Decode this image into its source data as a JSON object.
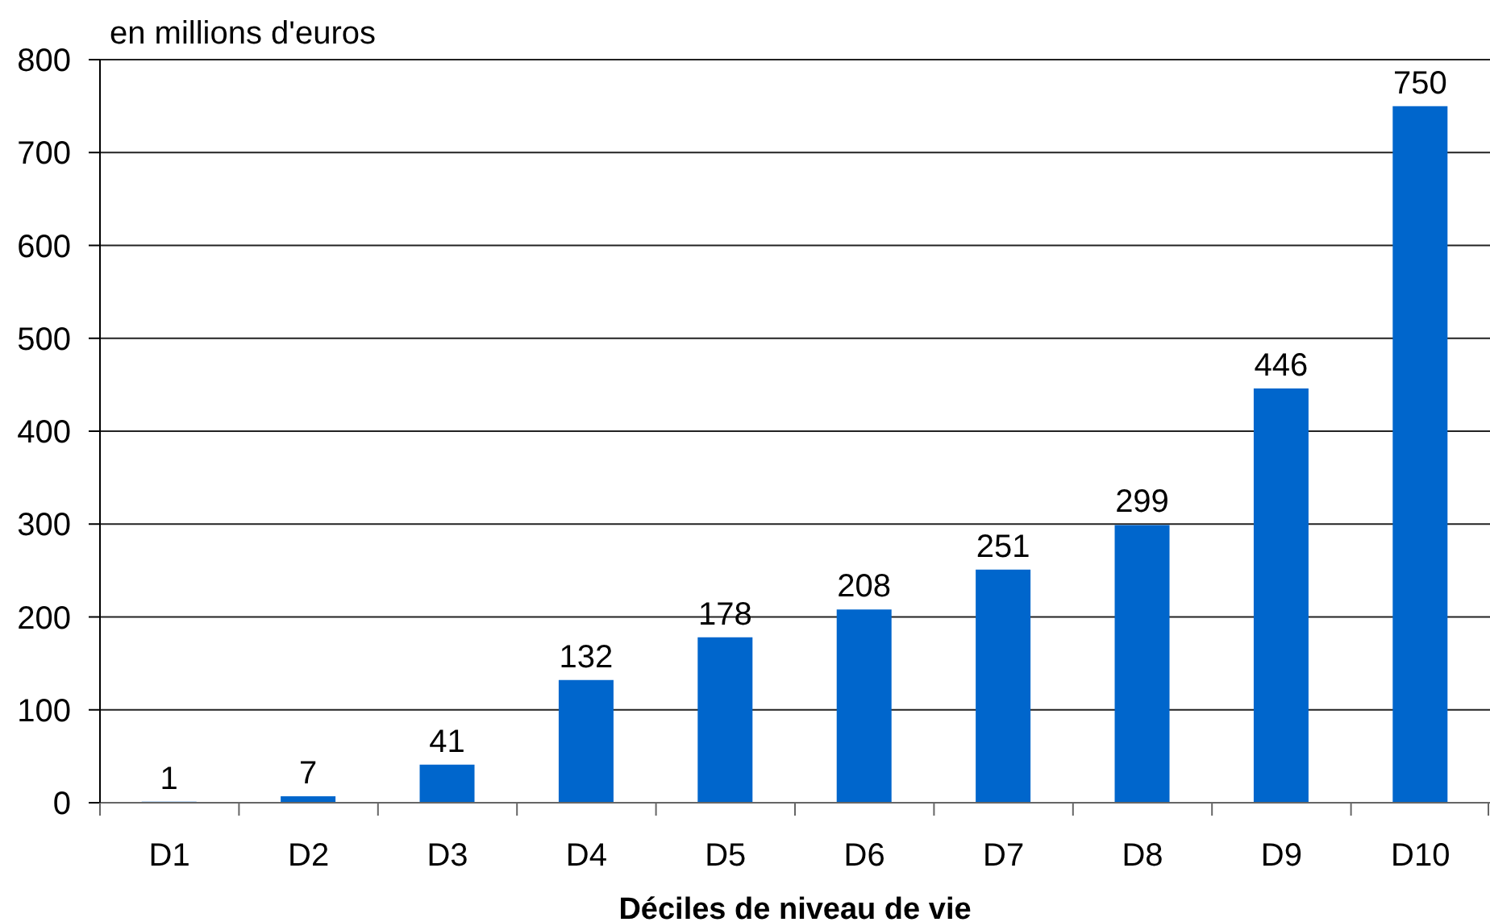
{
  "chart_data": {
    "type": "bar",
    "xlabel": "Déciles de niveau de vie",
    "ylabel": "en millions d'euros",
    "categories": [
      "D1",
      "D2",
      "D3",
      "D4",
      "D5",
      "D6",
      "D7",
      "D8",
      "D9",
      "D10"
    ],
    "values": [
      1,
      7,
      41,
      132,
      178,
      208,
      251,
      299,
      446,
      750
    ],
    "color": "#0066cc",
    "ylim": [
      0,
      800
    ],
    "yticks": [
      0,
      100,
      200,
      300,
      400,
      500,
      600,
      700,
      800
    ],
    "grid": "y",
    "data_labels": true
  }
}
